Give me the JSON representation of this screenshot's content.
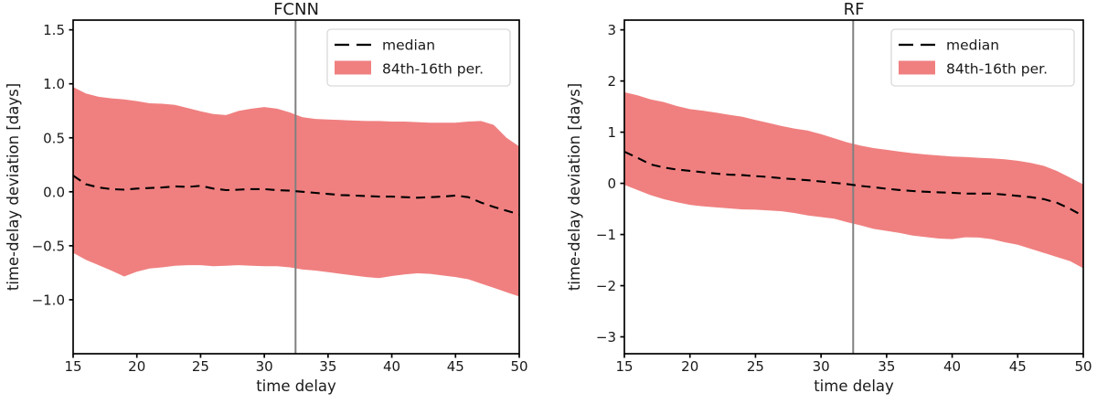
{
  "figure": {
    "background": "#ffffff",
    "band_color": "#f08080",
    "median_color": "#000000",
    "vline_color": "#808080",
    "spine_color": "#000000",
    "legend_border_color": "#d9d9d9",
    "text_color": "#1a1a1a"
  },
  "chart_data": [
    {
      "type": "area",
      "title": "FCNN",
      "xlabel": "time delay",
      "ylabel": "time-delay deviation [days]",
      "xlim": [
        15,
        50
      ],
      "ylim": [
        -1.5,
        1.59
      ],
      "xticks": [
        15,
        20,
        25,
        30,
        35,
        40,
        45,
        50
      ],
      "xtick_labels": [
        "15",
        "20",
        "25",
        "30",
        "35",
        "40",
        "45",
        "50"
      ],
      "yticks": [
        1.5,
        1.0,
        0.5,
        0.0,
        -0.5,
        -1.0
      ],
      "ytick_labels": [
        "1.5",
        "1.0",
        "0.5",
        "0.0",
        "−0.5",
        "−1.0"
      ],
      "grid": false,
      "vline_x": 32.45,
      "legend_position": "upper right",
      "legend": {
        "items": [
          {
            "label": "median",
            "sample": "dashed-line"
          },
          {
            "label": "84th-16th per.",
            "sample": "patch"
          }
        ]
      },
      "x": [
        15,
        16,
        17,
        18,
        19,
        20,
        21,
        22,
        23,
        24,
        25,
        26,
        27,
        28,
        29,
        30,
        31,
        32,
        33,
        34,
        35,
        36,
        37,
        38,
        39,
        40,
        41,
        42,
        43,
        44,
        45,
        46,
        47,
        48,
        49,
        50
      ],
      "series": [
        {
          "name": "median",
          "values": [
            0.15,
            0.07,
            0.04,
            0.025,
            0.02,
            0.03,
            0.035,
            0.04,
            0.05,
            0.045,
            0.055,
            0.03,
            0.015,
            0.02,
            0.025,
            0.025,
            0.015,
            0.01,
            0.0,
            -0.01,
            -0.02,
            -0.03,
            -0.035,
            -0.04,
            -0.045,
            -0.045,
            -0.05,
            -0.055,
            -0.05,
            -0.045,
            -0.035,
            -0.05,
            -0.1,
            -0.14,
            -0.175,
            -0.21
          ]
        },
        {
          "name": "84th percentile",
          "values": [
            0.97,
            0.91,
            0.88,
            0.865,
            0.855,
            0.84,
            0.82,
            0.815,
            0.805,
            0.775,
            0.745,
            0.72,
            0.71,
            0.75,
            0.77,
            0.785,
            0.77,
            0.735,
            0.69,
            0.675,
            0.67,
            0.665,
            0.66,
            0.655,
            0.655,
            0.65,
            0.65,
            0.645,
            0.64,
            0.64,
            0.64,
            0.65,
            0.655,
            0.62,
            0.5,
            0.42
          ]
        },
        {
          "name": "16th percentile",
          "values": [
            -0.565,
            -0.63,
            -0.68,
            -0.73,
            -0.785,
            -0.74,
            -0.71,
            -0.7,
            -0.685,
            -0.68,
            -0.68,
            -0.69,
            -0.685,
            -0.68,
            -0.685,
            -0.69,
            -0.69,
            -0.7,
            -0.72,
            -0.73,
            -0.745,
            -0.76,
            -0.775,
            -0.79,
            -0.8,
            -0.78,
            -0.765,
            -0.755,
            -0.76,
            -0.775,
            -0.79,
            -0.81,
            -0.85,
            -0.89,
            -0.93,
            -0.97
          ]
        }
      ]
    },
    {
      "type": "area",
      "title": "RF",
      "xlabel": "time delay",
      "ylabel": "time-delay deviation [days]",
      "xlim": [
        15,
        50
      ],
      "ylim": [
        -3.33,
        3.19
      ],
      "xticks": [
        15,
        20,
        25,
        30,
        35,
        40,
        45,
        50
      ],
      "xtick_labels": [
        "15",
        "20",
        "25",
        "30",
        "35",
        "40",
        "45",
        "50"
      ],
      "yticks": [
        3,
        2,
        1,
        0,
        -1,
        -2,
        -3
      ],
      "ytick_labels": [
        "3",
        "2",
        "1",
        "0",
        "−1",
        "−2",
        "−3"
      ],
      "grid": false,
      "vline_x": 32.45,
      "legend_position": "upper right",
      "legend": {
        "items": [
          {
            "label": "median",
            "sample": "dashed-line"
          },
          {
            "label": "84th-16th per.",
            "sample": "patch"
          }
        ]
      },
      "x": [
        15,
        16,
        17,
        18,
        19,
        20,
        21,
        22,
        23,
        24,
        25,
        26,
        27,
        28,
        29,
        30,
        31,
        32,
        33,
        34,
        35,
        36,
        37,
        38,
        39,
        40,
        41,
        42,
        43,
        44,
        45,
        46,
        47,
        48,
        49,
        50
      ],
      "series": [
        {
          "name": "median",
          "values": [
            0.62,
            0.5,
            0.37,
            0.31,
            0.27,
            0.245,
            0.215,
            0.19,
            0.17,
            0.16,
            0.14,
            0.125,
            0.1,
            0.08,
            0.06,
            0.035,
            0.01,
            -0.015,
            -0.05,
            -0.075,
            -0.105,
            -0.13,
            -0.15,
            -0.165,
            -0.175,
            -0.185,
            -0.2,
            -0.2,
            -0.2,
            -0.22,
            -0.245,
            -0.27,
            -0.31,
            -0.38,
            -0.5,
            -0.64
          ]
        },
        {
          "name": "84th percentile",
          "values": [
            1.78,
            1.72,
            1.64,
            1.59,
            1.51,
            1.45,
            1.42,
            1.38,
            1.34,
            1.3,
            1.24,
            1.18,
            1.12,
            1.07,
            1.03,
            0.96,
            0.88,
            0.8,
            0.74,
            0.69,
            0.655,
            0.62,
            0.59,
            0.565,
            0.545,
            0.525,
            0.515,
            0.5,
            0.49,
            0.47,
            0.44,
            0.4,
            0.34,
            0.24,
            0.11,
            -0.02
          ]
        },
        {
          "name": "16th percentile",
          "values": [
            -0.03,
            -0.13,
            -0.23,
            -0.31,
            -0.37,
            -0.42,
            -0.45,
            -0.47,
            -0.49,
            -0.51,
            -0.515,
            -0.53,
            -0.545,
            -0.58,
            -0.63,
            -0.66,
            -0.69,
            -0.76,
            -0.82,
            -0.89,
            -0.93,
            -0.97,
            -1.02,
            -1.05,
            -1.08,
            -1.09,
            -1.055,
            -1.06,
            -1.09,
            -1.15,
            -1.2,
            -1.28,
            -1.36,
            -1.44,
            -1.52,
            -1.66
          ]
        }
      ]
    }
  ]
}
